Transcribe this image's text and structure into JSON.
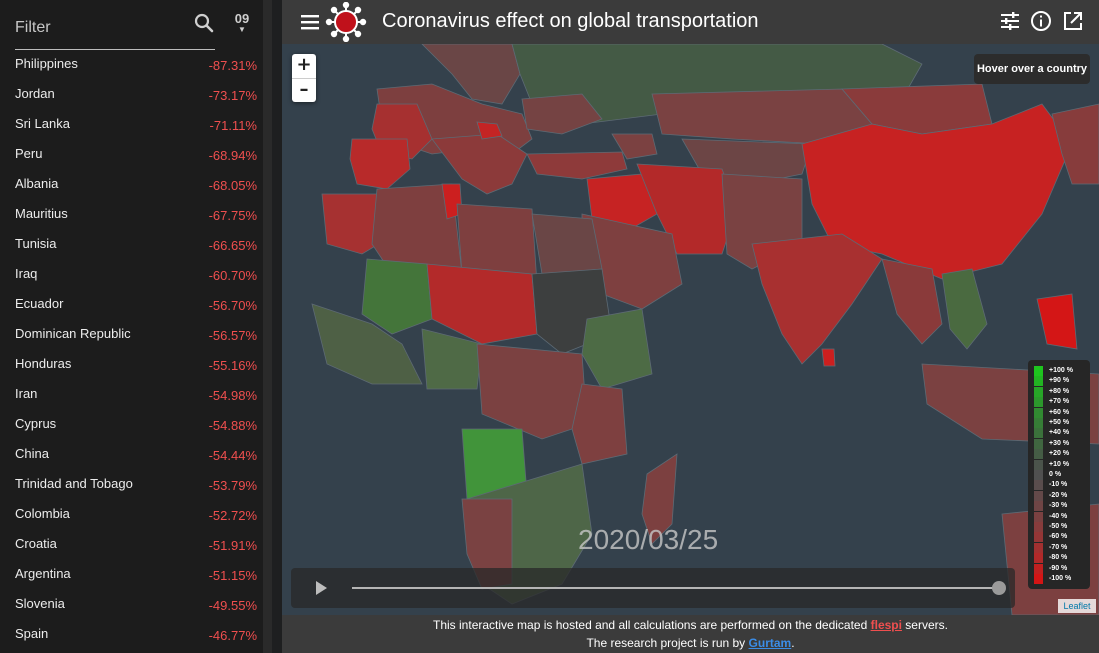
{
  "sidebar": {
    "filter_placeholder": "Filter",
    "sort_label": "09",
    "countries": [
      {
        "name": "Philippines",
        "value": "-87.31%"
      },
      {
        "name": "Jordan",
        "value": "-73.17%"
      },
      {
        "name": "Sri Lanka",
        "value": "-71.11%"
      },
      {
        "name": "Peru",
        "value": "-68.94%"
      },
      {
        "name": "Albania",
        "value": "-68.05%"
      },
      {
        "name": "Mauritius",
        "value": "-67.75%"
      },
      {
        "name": "Tunisia",
        "value": "-66.65%"
      },
      {
        "name": "Iraq",
        "value": "-60.70%"
      },
      {
        "name": "Ecuador",
        "value": "-56.70%"
      },
      {
        "name": "Dominican Republic",
        "value": "-56.57%"
      },
      {
        "name": "Honduras",
        "value": "-55.16%"
      },
      {
        "name": "Iran",
        "value": "-54.98%"
      },
      {
        "name": "Cyprus",
        "value": "-54.88%"
      },
      {
        "name": "China",
        "value": "-54.44%"
      },
      {
        "name": "Trinidad and Tobago",
        "value": "-53.79%"
      },
      {
        "name": "Colombia",
        "value": "-52.72%"
      },
      {
        "name": "Croatia",
        "value": "-51.91%"
      },
      {
        "name": "Argentina",
        "value": "-51.15%"
      },
      {
        "name": "Slovenia",
        "value": "-49.55%"
      },
      {
        "name": "Spain",
        "value": "-46.77%"
      }
    ]
  },
  "header": {
    "title": "Coronavirus effect on global transportation",
    "icons": [
      "menu-icon",
      "virus-logo",
      "tune-icon",
      "info-icon",
      "open-in-new-icon"
    ]
  },
  "map": {
    "hover_hint": "Hover over a country",
    "zoom_in": "+",
    "zoom_out": "–",
    "date": "2020/03/25",
    "timeline_progress": 1.0,
    "attribution": "Leaflet",
    "legend": [
      {
        "label": "+100 %",
        "color": "#1ec51e"
      },
      {
        "label": "+90 %",
        "color": "#22b522"
      },
      {
        "label": "+80 %",
        "color": "#27a627"
      },
      {
        "label": "+70 %",
        "color": "#2c982c"
      },
      {
        "label": "+60 %",
        "color": "#318a31"
      },
      {
        "label": "+50 %",
        "color": "#367d36"
      },
      {
        "label": "+40 %",
        "color": "#3b713b"
      },
      {
        "label": "+30 %",
        "color": "#406640"
      },
      {
        "label": "+20 %",
        "color": "#455c45"
      },
      {
        "label": "+10 %",
        "color": "#4b544b"
      },
      {
        "label": "0 %",
        "color": "#505050"
      },
      {
        "label": "-10 %",
        "color": "#5a4d4d"
      },
      {
        "label": "-20 %",
        "color": "#644949"
      },
      {
        "label": "-30 %",
        "color": "#6f4545"
      },
      {
        "label": "-40 %",
        "color": "#7a4141"
      },
      {
        "label": "-50 %",
        "color": "#873c3c"
      },
      {
        "label": "-60 %",
        "color": "#943636"
      },
      {
        "label": "-70 %",
        "color": "#a23030"
      },
      {
        "label": "-80 %",
        "color": "#b12929"
      },
      {
        "label": "-90 %",
        "color": "#c12020"
      },
      {
        "label": "-100 %",
        "color": "#d41515"
      }
    ]
  },
  "footer": {
    "line1_pre": "This interactive map is hosted and all calculations are performed on the dedicated",
    "line1_link": "flespi",
    "line1_post": "servers.",
    "line2_pre": "The research project is run by",
    "line2_link": "Gurtam",
    "line2_post": "."
  },
  "colors": {
    "negative_value": "#ef4f4f",
    "link_red": "#ef4f4f",
    "link_blue": "#3b8de8",
    "ocean": "#34414c",
    "header_bg": "#3b3b3b"
  }
}
